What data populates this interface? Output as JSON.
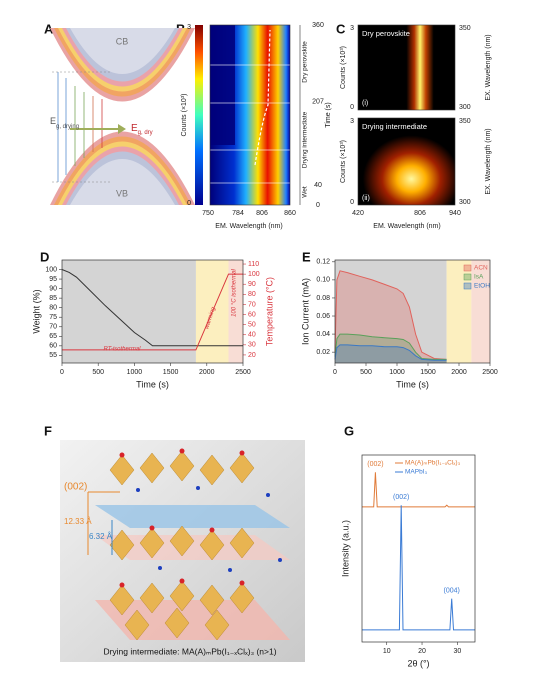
{
  "panel_labels": [
    "A",
    "B",
    "C",
    "D",
    "E",
    "F",
    "G"
  ],
  "band_diagram": {
    "cb": "CB",
    "vb": "VB",
    "eg_drying": {
      "symbol": "E",
      "subscript": "g, drying"
    },
    "eg_dry": {
      "symbol": "E",
      "subscript": "g, dry"
    }
  },
  "pl_map": {
    "y_label": "Counts (×10³)",
    "y_ticks": [
      3,
      0
    ],
    "x_label": "EM. Wavelength (nm)",
    "x_ticks": [
      750,
      784,
      806,
      860
    ],
    "time_label": "Time (s)",
    "time_ticks": [
      360,
      207,
      40,
      0
    ],
    "stages": [
      "Dry perovskite",
      "Drying intermediate",
      "Wet"
    ]
  },
  "pl_excitation": {
    "maps": [
      {
        "title": "Dry perovskite",
        "tag": "(i)"
      },
      {
        "title": "Drying intermediate",
        "tag": "(ii)"
      }
    ],
    "y_label": "Counts (×10³)",
    "y_ticks": [
      3,
      0
    ],
    "ex_label": "EX. Wavelength (nm)",
    "ex_ticks": [
      350,
      300
    ],
    "x_label": "EM. Wavelength (nm)",
    "x_ticks": [
      420,
      806,
      940
    ]
  },
  "structure": {
    "plane": "(002)",
    "d_large": "12.33 Å",
    "d_small": "6.32 Å",
    "caption": "Drying intermediate: MA(A)ₘPb(I₁₋ₓClₓ)₃ (n>1)"
  },
  "chart_data": [
    {
      "type": "line",
      "x_label": "Time (s)",
      "y_label": "Weight (%)",
      "y2_label": "Temperature (°C)",
      "xlim": [
        0,
        2500
      ],
      "xticks": [
        0,
        500,
        1000,
        1500,
        2000,
        2500
      ],
      "ylim": [
        51,
        105
      ],
      "yticks": [
        55,
        60,
        65,
        70,
        75,
        80,
        85,
        90,
        95,
        100
      ],
      "y2lim": [
        12,
        114
      ],
      "y2ticks": [
        20,
        30,
        40,
        50,
        60,
        70,
        80,
        90,
        100,
        110
      ],
      "regions": [
        {
          "x": [
            0,
            1850
          ],
          "color": "#d4d4d4"
        },
        {
          "x": [
            1850,
            2300
          ],
          "color": "#fcefbf"
        },
        {
          "x": [
            2300,
            2500
          ],
          "color": "#f8ddd5"
        }
      ],
      "annotations": [
        "RT-isothermal",
        "warming",
        "100 °C isothermal"
      ],
      "series": [
        {
          "color": "#333333",
          "x": [
            0,
            100,
            200,
            400,
            600,
            800,
            1000,
            1150,
            1250,
            1500,
            2000,
            2500
          ],
          "values": [
            100,
            98.5,
            96,
            88.5,
            81,
            74,
            67,
            63,
            60,
            60,
            60,
            60
          ]
        },
        {
          "color": "#d9363e",
          "axis": "y2",
          "x": [
            0,
            1850,
            2300,
            2500
          ],
          "values": [
            25,
            25,
            100,
            100
          ]
        }
      ]
    },
    {
      "type": "area",
      "x_label": "Time (s)",
      "y_label": "Ion Current (mA)",
      "xlim": [
        0,
        2500
      ],
      "xticks": [
        0,
        500,
        1000,
        1500,
        2000,
        2500
      ],
      "ylim": [
        0.008,
        0.122
      ],
      "yticks": [
        0.02,
        0.04,
        0.06,
        0.08,
        {
          "value": 0.1,
          "label": "0.10"
        },
        0.12
      ],
      "regions": [
        {
          "x": [
            0,
            1800
          ],
          "color": "#d4d4d4"
        },
        {
          "x": [
            1800,
            2200
          ],
          "color": "#fcefbf"
        },
        {
          "x": [
            2200,
            2500
          ],
          "color": "#f8ddd5"
        }
      ],
      "legend": "upper right",
      "series": [
        {
          "name": "ACN",
          "color": "#e0625c",
          "x": [
            0,
            30,
            80,
            200,
            400,
            600,
            800,
            1000,
            1100,
            1200,
            1300,
            1400,
            1600,
            1800
          ],
          "values": [
            0.02,
            0.1,
            0.11,
            0.108,
            0.104,
            0.1,
            0.095,
            0.09,
            0.085,
            0.07,
            0.04,
            0.02,
            0.013,
            0.012
          ]
        },
        {
          "name": "IsA",
          "color": "#5aa05a",
          "x": [
            0,
            30,
            80,
            200,
            400,
            600,
            800,
            1000,
            1100,
            1200,
            1300,
            1400,
            1600,
            1800
          ],
          "values": [
            0.015,
            0.035,
            0.04,
            0.04,
            0.039,
            0.037,
            0.036,
            0.035,
            0.034,
            0.03,
            0.02,
            0.013,
            0.012,
            0.012
          ]
        },
        {
          "name": "EtOH",
          "color": "#3b78c4",
          "x": [
            0,
            30,
            80,
            200,
            400,
            600,
            800,
            1000,
            1100,
            1200,
            1300,
            1400,
            1600,
            1800
          ],
          "values": [
            0.012,
            0.025,
            0.028,
            0.028,
            0.027,
            0.027,
            0.026,
            0.026,
            0.025,
            0.022,
            0.016,
            0.012,
            0.011,
            0.011
          ]
        }
      ]
    },
    {
      "type": "line",
      "x_label": "2θ (°)",
      "y_label": "Intensity (a.u.)",
      "xlim": [
        3,
        35
      ],
      "xticks": [
        10,
        20,
        30
      ],
      "ylim": [
        0,
        1.08
      ],
      "legend": "upper right",
      "series": [
        {
          "name": "MA(A)ₘPb(I₁₋ₓClₓ)₃",
          "color": "#e07b39",
          "x": [
            3,
            6.3,
            6.8,
            7.3,
            20,
            26.5,
            27,
            27.5,
            35
          ],
          "values": [
            0.78,
            0.78,
            0.98,
            0.78,
            0.78,
            0.78,
            0.79,
            0.78,
            0.78
          ],
          "value_labels": [
            null,
            null,
            "(002)",
            null,
            null,
            null,
            null,
            null,
            null
          ]
        },
        {
          "name": "MAPbI₃",
          "color": "#3a7bd5",
          "x": [
            3,
            13.6,
            14.1,
            14.6,
            27.9,
            28.4,
            28.9,
            35
          ],
          "values": [
            0.07,
            0.07,
            0.79,
            0.07,
            0.07,
            0.25,
            0.07,
            0.07
          ],
          "value_labels": [
            null,
            null,
            "(002)",
            null,
            null,
            "(004)",
            null,
            null
          ]
        }
      ]
    }
  ]
}
